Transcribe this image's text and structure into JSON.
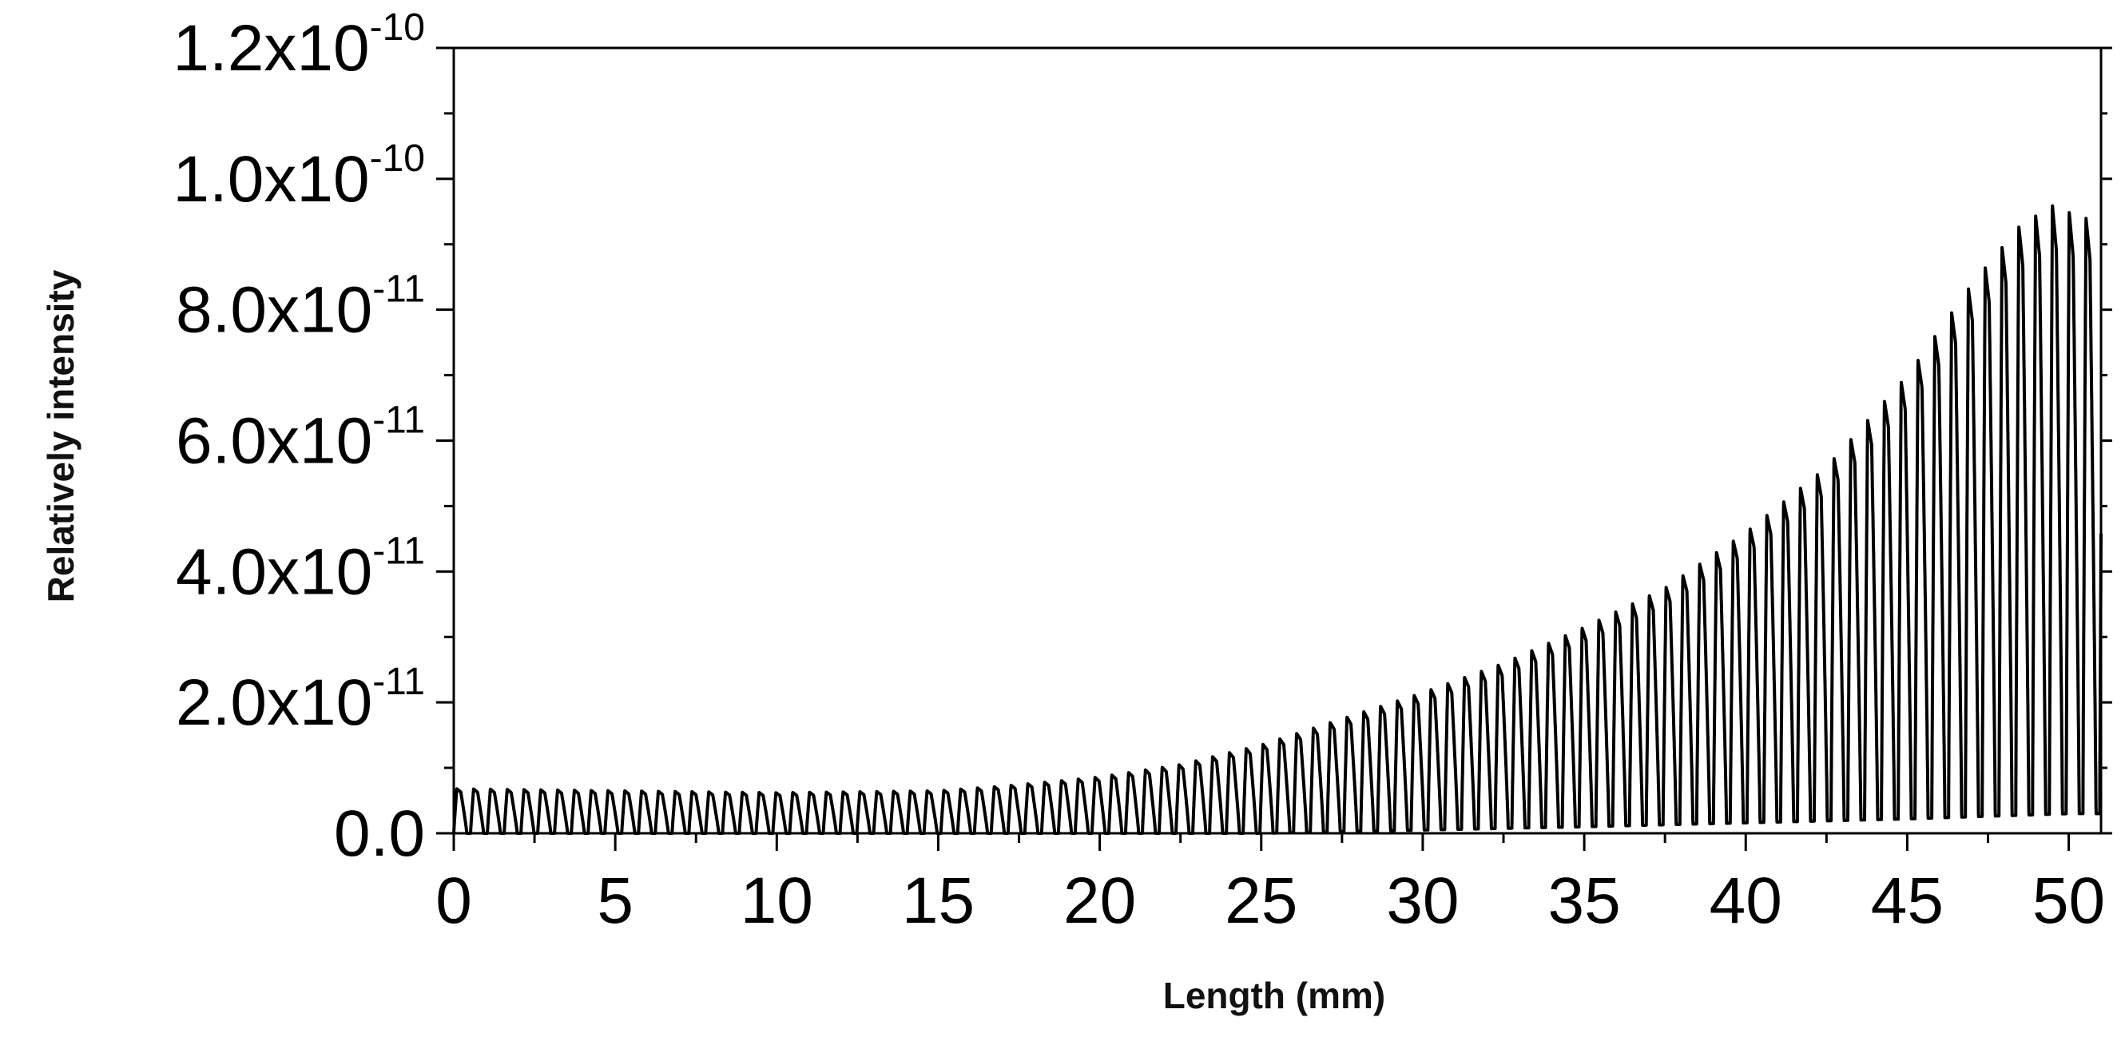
{
  "chart_data": {
    "type": "line",
    "title": "",
    "xlabel": "Length (mm)",
    "ylabel": "Relatively intensity",
    "xlim": [
      0,
      51
    ],
    "ylim": [
      0,
      1.2e-10
    ],
    "grid": false,
    "legend": "none",
    "line_color": "#000000",
    "x_ticks": [
      {
        "value": 0,
        "label": "0"
      },
      {
        "value": 5,
        "label": "5"
      },
      {
        "value": 10,
        "label": "10"
      },
      {
        "value": 15,
        "label": "15"
      },
      {
        "value": 20,
        "label": "20"
      },
      {
        "value": 25,
        "label": "25"
      },
      {
        "value": 30,
        "label": "30"
      },
      {
        "value": 35,
        "label": "35"
      },
      {
        "value": 40,
        "label": "40"
      },
      {
        "value": 45,
        "label": "45"
      },
      {
        "value": 50,
        "label": "50"
      }
    ],
    "y_ticks": [
      {
        "value": 0,
        "mantissa": "0.0",
        "exponent": ""
      },
      {
        "value": 2e-11,
        "mantissa": "2.0x10",
        "exponent": "-11"
      },
      {
        "value": 4e-11,
        "mantissa": "4.0x10",
        "exponent": "-11"
      },
      {
        "value": 6e-11,
        "mantissa": "6.0x10",
        "exponent": "-11"
      },
      {
        "value": 8e-11,
        "mantissa": "8.0x10",
        "exponent": "-11"
      },
      {
        "value": 1e-10,
        "mantissa": "1.0x10",
        "exponent": "-10"
      },
      {
        "value": 1.2e-10,
        "mantissa": "1.2x10",
        "exponent": "-10"
      }
    ],
    "series": [
      {
        "oscillation_period": 0.52,
        "peaks": {
          "x": [
            0,
            5,
            10,
            15,
            17,
            20,
            22.5,
            25,
            27.5,
            30,
            32.5,
            35,
            37.5,
            40,
            42.5,
            45,
            47,
            48.5,
            49.5,
            50.5,
            51
          ],
          "y": [
            6.8e-12,
            6.5e-12,
            6.2e-12,
            6.5e-12,
            7.2e-12,
            8.6e-12,
            1.05e-11,
            1.35e-11,
            1.75e-11,
            2.15e-11,
            2.6e-11,
            3.15e-11,
            3.75e-11,
            4.6e-11,
            5.6e-11,
            7e-11,
            8.4e-11,
            9.3e-11,
            9.6e-11,
            9.4e-11,
            9.5e-11
          ]
        },
        "troughs": {
          "x": [
            0,
            20,
            25,
            30,
            35,
            40,
            45,
            50,
            51
          ],
          "y": [
            0,
            0,
            0,
            5e-13,
            1e-12,
            1.6e-12,
            2.2e-12,
            3e-12,
            3e-12
          ]
        }
      }
    ]
  }
}
